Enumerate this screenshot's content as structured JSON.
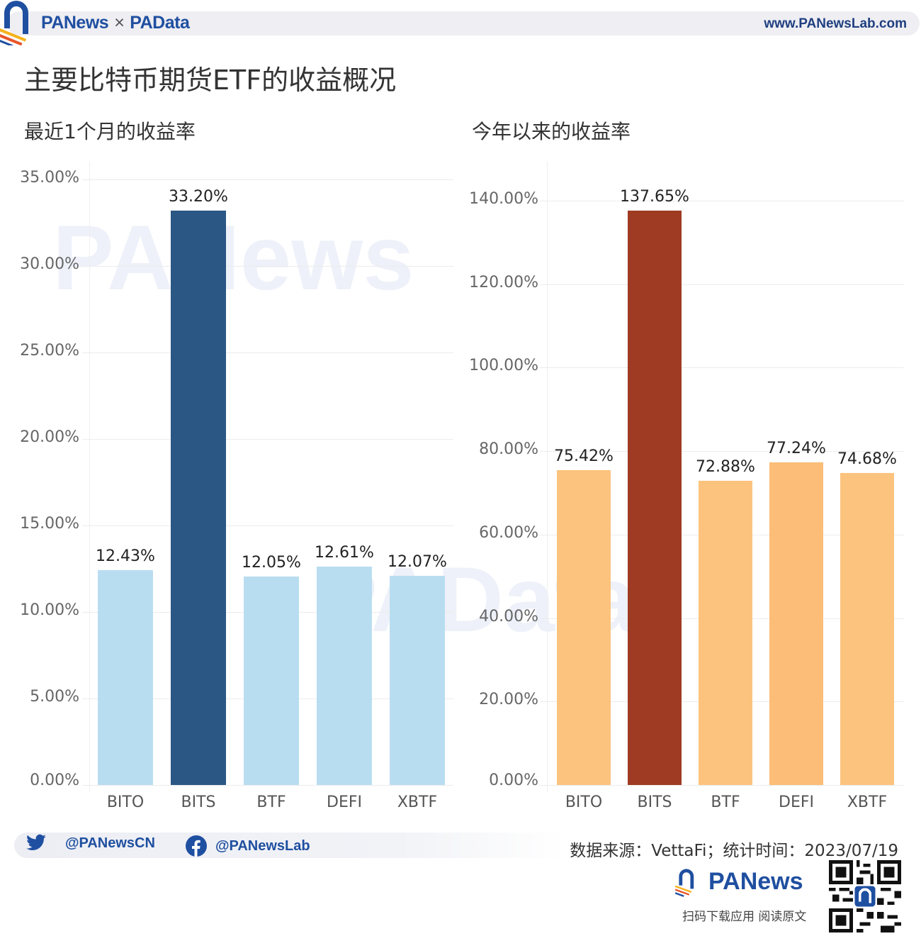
{
  "header": {
    "brand_left": "PANews",
    "brand_sep": "×",
    "brand_right": "PAData",
    "url": "www.PANewsLab.com",
    "title": "主要比特币期货ETF的收益概况"
  },
  "colors": {
    "brand_blue": "#1f4fa0",
    "brand_orange": "#f08a24",
    "left_highlight": "#2a5783",
    "left_default": "#b9ddf0",
    "right_highlight": "#9e3b22",
    "right_default": "#fcc37e",
    "right_default_alt": "#fbbd77"
  },
  "chart_data": [
    {
      "type": "bar",
      "title": "最近1个月的收益率",
      "xlabel": "",
      "ylabel": "",
      "categories": [
        "BITO",
        "BITS",
        "BTF",
        "DEFI",
        "XBTF"
      ],
      "values": [
        12.43,
        33.2,
        12.05,
        12.61,
        12.07
      ],
      "value_labels": [
        "12.43%",
        "33.20%",
        "12.05%",
        "12.61%",
        "12.07%"
      ],
      "highlight": "BITS",
      "yticks": [
        "0.00%",
        "5.00%",
        "10.00%",
        "15.00%",
        "20.00%",
        "25.00%",
        "30.00%",
        "35.00%"
      ],
      "ylim": [
        0,
        35
      ],
      "grid": true,
      "legend": "none"
    },
    {
      "type": "bar",
      "title": "今年以来的收益率",
      "xlabel": "",
      "ylabel": "",
      "categories": [
        "BITO",
        "BITS",
        "BTF",
        "DEFI",
        "XBTF"
      ],
      "values": [
        75.42,
        137.65,
        72.88,
        77.24,
        74.68
      ],
      "value_labels": [
        "75.42%",
        "137.65%",
        "72.88%",
        "77.24%",
        "74.68%"
      ],
      "highlight": "BITS",
      "yticks": [
        "0.00%",
        "20.00%",
        "40.00%",
        "60.00%",
        "80.00%",
        "100.00%",
        "120.00%",
        "140.00%"
      ],
      "ylim": [
        0,
        140
      ],
      "grid": true,
      "legend": "none"
    }
  ],
  "footer": {
    "twitter_handle": "@PANewsCN",
    "facebook_handle": "@PANewsLab",
    "source": "数据来源：VettaFi；统计时间：2023/07/19",
    "brand": "PANews",
    "cta": "扫码下载应用  阅读原文"
  },
  "watermarks": {
    "left": "PANews",
    "right": "PAData"
  }
}
